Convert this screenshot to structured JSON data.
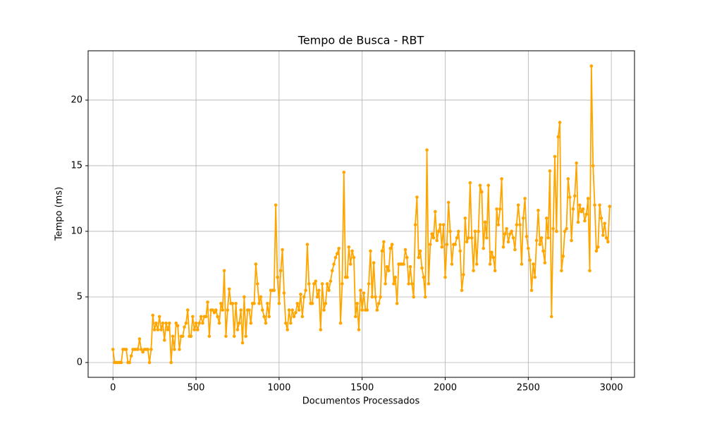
{
  "chart_data": {
    "type": "line",
    "title": "Tempo de Busca - RBT",
    "xlabel": "Documentos Processados",
    "ylabel": "Tempo (ms)",
    "x": [
      0,
      10,
      20,
      30,
      40,
      50,
      60,
      70,
      80,
      90,
      100,
      110,
      120,
      130,
      140,
      150,
      160,
      170,
      180,
      190,
      200,
      210,
      220,
      230,
      240,
      250,
      260,
      270,
      280,
      290,
      300,
      310,
      320,
      330,
      340,
      350,
      360,
      370,
      380,
      390,
      400,
      410,
      420,
      430,
      440,
      450,
      460,
      470,
      480,
      490,
      500,
      510,
      520,
      530,
      540,
      550,
      560,
      570,
      580,
      590,
      600,
      610,
      620,
      630,
      640,
      650,
      660,
      670,
      680,
      690,
      700,
      710,
      720,
      730,
      740,
      750,
      760,
      770,
      780,
      790,
      800,
      810,
      820,
      830,
      840,
      850,
      860,
      870,
      880,
      890,
      900,
      910,
      920,
      930,
      940,
      950,
      960,
      970,
      980,
      990,
      1000,
      1010,
      1020,
      1030,
      1040,
      1050,
      1060,
      1070,
      1080,
      1090,
      1100,
      1110,
      1120,
      1130,
      1140,
      1150,
      1160,
      1170,
      1180,
      1190,
      1200,
      1210,
      1220,
      1230,
      1240,
      1250,
      1260,
      1270,
      1280,
      1290,
      1300,
      1310,
      1320,
      1330,
      1340,
      1350,
      1360,
      1370,
      1380,
      1390,
      1400,
      1410,
      1420,
      1430,
      1440,
      1450,
      1460,
      1470,
      1480,
      1490,
      1500,
      1510,
      1520,
      1530,
      1540,
      1550,
      1560,
      1570,
      1580,
      1590,
      1600,
      1610,
      1620,
      1630,
      1640,
      1650,
      1660,
      1670,
      1680,
      1690,
      1700,
      1710,
      1720,
      1730,
      1740,
      1750,
      1760,
      1770,
      1780,
      1790,
      1800,
      1810,
      1820,
      1830,
      1840,
      1850,
      1860,
      1870,
      1880,
      1890,
      1900,
      1910,
      1920,
      1930,
      1940,
      1950,
      1960,
      1970,
      1980,
      1990,
      2000,
      2010,
      2020,
      2030,
      2040,
      2050,
      2060,
      2070,
      2080,
      2090,
      2100,
      2110,
      2120,
      2130,
      2140,
      2150,
      2160,
      2170,
      2180,
      2190,
      2200,
      2210,
      2220,
      2230,
      2240,
      2250,
      2260,
      2270,
      2280,
      2290,
      2300,
      2310,
      2320,
      2330,
      2340,
      2350,
      2360,
      2370,
      2380,
      2390,
      2400,
      2410,
      2420,
      2430,
      2440,
      2450,
      2460,
      2470,
      2480,
      2490,
      2500,
      2510,
      2520,
      2530,
      2540,
      2550,
      2560,
      2570,
      2580,
      2590,
      2600,
      2610,
      2620,
      2630,
      2640,
      2650,
      2660,
      2670,
      2680,
      2690,
      2700,
      2710,
      2720,
      2730,
      2740,
      2750,
      2760,
      2770,
      2780,
      2790,
      2800,
      2810,
      2820,
      2830,
      2840,
      2850,
      2860,
      2870,
      2880,
      2890,
      2900,
      2910,
      2920,
      2930,
      2940,
      2950,
      2960,
      2970,
      2980,
      2990
    ],
    "series": [
      {
        "color": "#ffa500",
        "values": [
          1,
          0,
          0,
          0,
          0,
          0,
          1,
          1,
          1,
          0,
          0,
          0.5,
          1,
          1,
          1,
          1,
          1.8,
          1,
          0.8,
          1,
          1,
          1,
          0,
          1,
          3.6,
          2.5,
          3,
          2.5,
          3.5,
          2.5,
          3,
          1.7,
          3,
          2.5,
          3,
          0,
          2,
          1,
          3,
          2.8,
          1,
          2,
          2,
          2.7,
          3,
          4,
          2,
          2,
          3.5,
          2.5,
          3,
          2.5,
          3,
          3.5,
          3,
          3.5,
          3.5,
          4.6,
          2,
          4,
          4,
          3.8,
          4,
          3.5,
          3,
          4.5,
          4,
          7,
          2,
          4,
          5.6,
          4.5,
          4.5,
          2,
          4.5,
          2.5,
          3,
          4,
          1.5,
          5,
          2,
          4,
          4,
          3,
          4.5,
          4.5,
          7.5,
          6,
          4.5,
          5,
          4,
          3.5,
          3,
          4.5,
          3.5,
          5.5,
          5.5,
          5.5,
          12,
          6.5,
          4.5,
          7,
          8.6,
          5.3,
          3,
          2.5,
          4,
          3,
          4,
          3.5,
          3.8,
          4.5,
          4,
          5.2,
          3.5,
          5,
          5.5,
          9,
          6,
          4.5,
          4.5,
          6,
          6.2,
          5,
          5.5,
          2.5,
          6,
          4,
          4.5,
          6,
          5.5,
          6.2,
          7,
          7.5,
          8,
          8.3,
          8.7,
          3,
          6,
          14.5,
          6.5,
          6.5,
          8.8,
          7.5,
          8.5,
          8,
          3.5,
          4.5,
          2.5,
          5.5,
          4,
          5.3,
          4,
          4,
          6,
          8.5,
          5,
          7.6,
          5,
          4,
          4.5,
          5,
          8.5,
          9.2,
          6,
          7.3,
          7,
          8.7,
          9,
          6,
          6.5,
          4.5,
          7.5,
          7.5,
          7.5,
          7.5,
          8.6,
          8,
          6,
          7.3,
          6,
          5,
          10.5,
          12.6,
          8,
          8.5,
          7.2,
          6.5,
          5,
          16.2,
          6,
          9,
          9.8,
          9.5,
          11.5,
          9.3,
          10,
          10.5,
          8.8,
          10.5,
          6.5,
          9,
          12.2,
          10,
          7.5,
          9,
          9,
          9.5,
          10,
          8.5,
          5.5,
          6.7,
          11,
          9.2,
          9.5,
          13.7,
          9.5,
          7,
          10,
          7.5,
          10,
          13.5,
          13,
          8.7,
          10.7,
          9.5,
          13.5,
          7.5,
          8.4,
          8,
          7,
          11.7,
          10.5,
          11.7,
          14,
          8.8,
          9.8,
          10.2,
          9.2,
          9.8,
          10,
          9.5,
          8.6,
          10.5,
          12,
          10.5,
          7.5,
          11,
          12.5,
          9.6,
          8.7,
          7.8,
          5.5,
          7.5,
          6.5,
          9.3,
          11.6,
          9,
          9.5,
          8.5,
          7.6,
          11,
          9.5,
          14.6,
          3.5,
          10.2,
          15.7,
          10,
          17.2,
          18.3,
          7,
          8.1,
          10,
          10.2,
          14,
          12.6,
          9.3,
          11.7,
          12.7,
          15.2,
          10.7,
          12,
          11.5,
          11.7,
          10.8,
          11.3,
          12.5,
          7,
          22.6,
          15,
          12,
          8.5,
          8.8,
          12,
          11,
          9.7,
          10.6,
          9.5,
          9.2,
          11.9
        ]
      }
    ],
    "xlim": [
      -149.5,
      3139.5
    ],
    "ylim": [
      -1.13,
      23.76
    ],
    "xticks": [
      0,
      500,
      1000,
      1500,
      2000,
      2500,
      3000
    ],
    "yticks": [
      0,
      5,
      10,
      15,
      20
    ],
    "grid": true
  }
}
